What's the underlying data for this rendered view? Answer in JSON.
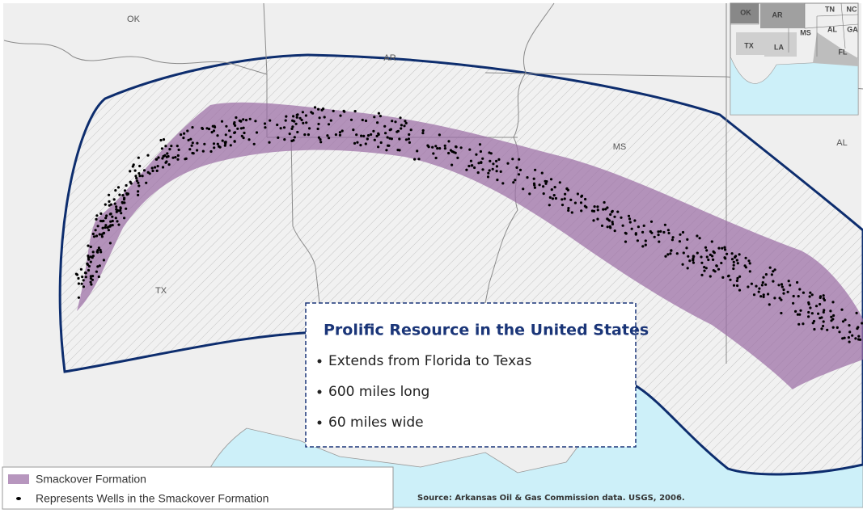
{
  "map": {
    "state_labels": [
      "OK",
      "AR",
      "MS",
      "AL",
      "TX"
    ],
    "inset_labels": [
      "OK",
      "AR",
      "TN",
      "NC",
      "AL",
      "GA",
      "MS",
      "TX",
      "LA",
      "FL"
    ]
  },
  "callout": {
    "title": "Prolific Resource in the United States",
    "bullets": [
      "Extends from Florida to Texas",
      "600 miles long",
      "60 miles wide"
    ]
  },
  "legend": {
    "items": [
      "Smackover Formation",
      "Represents Wells in the Smackover Formation"
    ]
  },
  "source": "Source: Arkansas Oil & Gas Commission data. USGS, 2006."
}
